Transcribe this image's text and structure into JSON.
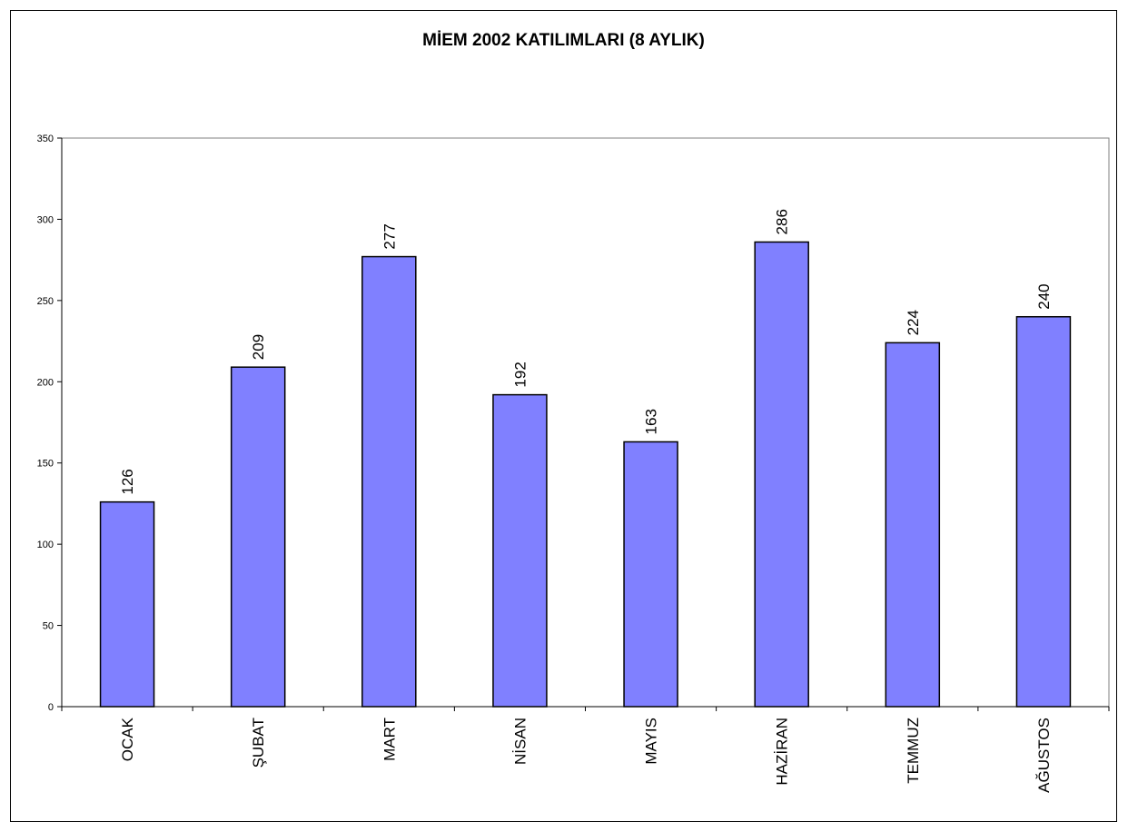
{
  "chart_data": {
    "type": "bar",
    "title": "MİEM 2002 KATILIMLARI (8 AYLIK)",
    "categories": [
      "OCAK",
      "ŞUBAT",
      "MART",
      "NİSAN",
      "MAYIS",
      "HAZİRAN",
      "TEMMUZ",
      "AĞUSTOS"
    ],
    "values": [
      126,
      209,
      277,
      192,
      163,
      286,
      224,
      240
    ],
    "ylim": [
      0,
      350
    ],
    "yticks": [
      0,
      50,
      100,
      150,
      200,
      250,
      300,
      350
    ],
    "data_labels": true,
    "grid": false,
    "legend": "none",
    "colors": {
      "bar_fill": "#8080ff",
      "bar_stroke": "#000000",
      "plot_border": "#808080",
      "axis": "#000000"
    }
  }
}
